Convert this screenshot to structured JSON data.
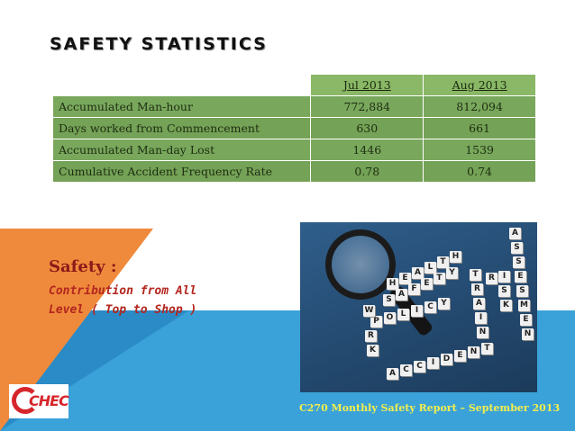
{
  "title": "SAFETY STATISTICS",
  "table": {
    "columns": [
      "Jul 2013",
      "Aug 2013"
    ],
    "rows": [
      {
        "label": "Accumulated Man-hour",
        "jul": "772,884",
        "aug": "812,094"
      },
      {
        "label": "Days worked from Commencement",
        "jul": "630",
        "aug": "661"
      },
      {
        "label": "Accumulated Man-day Lost",
        "jul": "1446",
        "aug": "1539"
      },
      {
        "label": "Cumulative Accident Frequency Rate",
        "jul": "0.78",
        "aug": "0.74"
      }
    ]
  },
  "safety": {
    "heading": "Safety :",
    "line1": "Contribution from All",
    "line2": "Level ( Top to Shop )"
  },
  "logo": {
    "text": "CHEC"
  },
  "footer": "C270 Monthly Safety Report – September 2013",
  "colors": {
    "table_green": "#77a55a",
    "orange": "#ef8a3c",
    "blue": "#3aa2d9",
    "red_text": "#b3261e",
    "footer_text": "#f2ee4f"
  }
}
